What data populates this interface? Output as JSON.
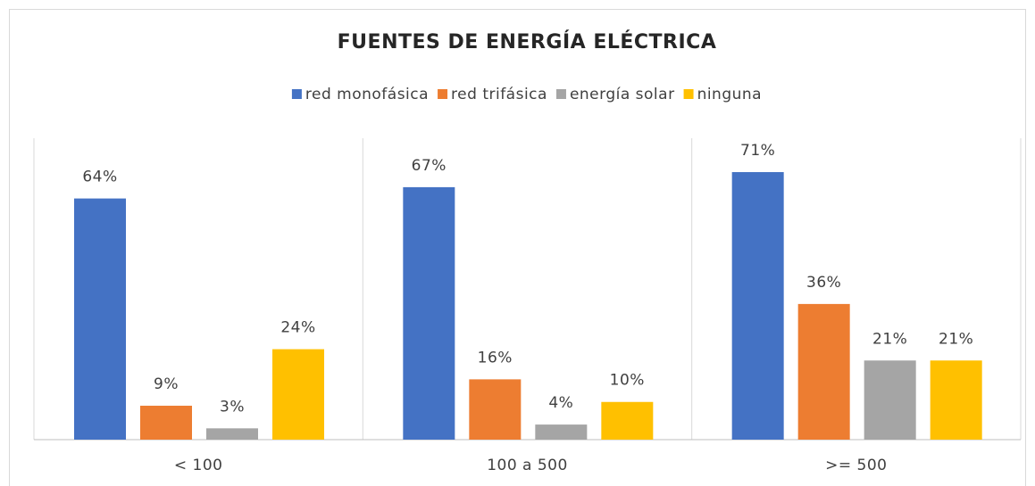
{
  "chart_data": {
    "type": "bar",
    "title": "FUENTES DE ENERGÍA ELÉCTRICA",
    "categories": [
      "< 100",
      "100 a 500",
      ">= 500"
    ],
    "series": [
      {
        "name": "red monofásica",
        "color": "#4472c4",
        "values": [
          64,
          67,
          71
        ],
        "value_labels": [
          "64%",
          "67%",
          "71%"
        ]
      },
      {
        "name": "red trifásica",
        "color": "#ed7d31",
        "values": [
          9,
          16,
          36
        ],
        "value_labels": [
          "9%",
          "16%",
          "36%"
        ]
      },
      {
        "name": "energía solar",
        "color": "#a5a5a5",
        "values": [
          3,
          4,
          21
        ],
        "value_labels": [
          "3%",
          "4%",
          "21%"
        ]
      },
      {
        "name": "ninguna",
        "color": "#ffc000",
        "values": [
          24,
          10,
          21
        ],
        "value_labels": [
          "24%",
          "10%",
          "21%"
        ]
      }
    ],
    "legend": "top"
  }
}
